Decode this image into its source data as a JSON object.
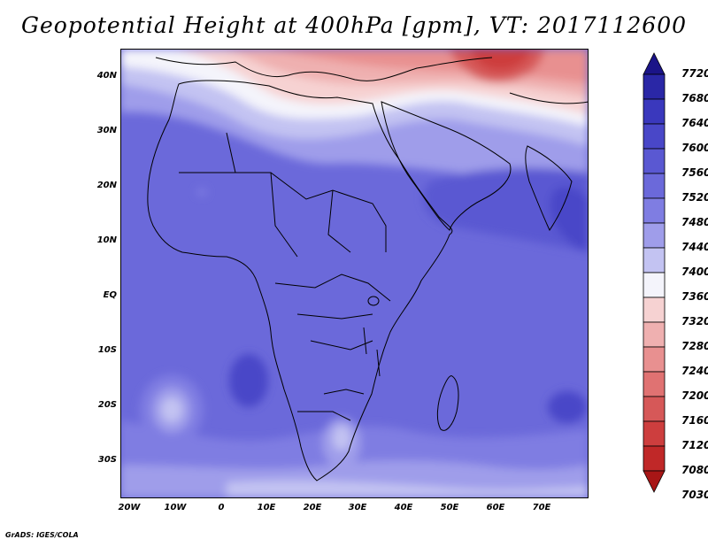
{
  "title": "Geopotential Height at 400hPa [gpm], VT: 2017112600",
  "credit": "GrADS: IGES/COLA",
  "y_axis_labels": [
    "40N",
    "30N",
    "20N",
    "10N",
    "EQ",
    "10S",
    "20S",
    "30S"
  ],
  "x_axis_labels": [
    "20W",
    "10W",
    "0",
    "10E",
    "20E",
    "30E",
    "40E",
    "50E",
    "60E",
    "70E"
  ],
  "colorbar": {
    "labels": [
      "7720",
      "7680",
      "7640",
      "7600",
      "7560",
      "7520",
      "7480",
      "7440",
      "7400",
      "7360",
      "7320",
      "7280",
      "7240",
      "7200",
      "7160",
      "7120",
      "7080",
      "7030"
    ],
    "colors": [
      "#1b1488",
      "#2a27a6",
      "#3a38bd",
      "#4947c8",
      "#5a58d2",
      "#6b69da",
      "#7f7de2",
      "#9f9dea",
      "#c3c3f2",
      "#f4f4fb",
      "#f6d2d2",
      "#efb0b0",
      "#e89090",
      "#e07272",
      "#d65858",
      "#cd3e3e",
      "#c02828",
      "#a81616"
    ]
  },
  "colors": {
    "ocean_base": "#6b69da",
    "land_outline": "#000000"
  }
}
